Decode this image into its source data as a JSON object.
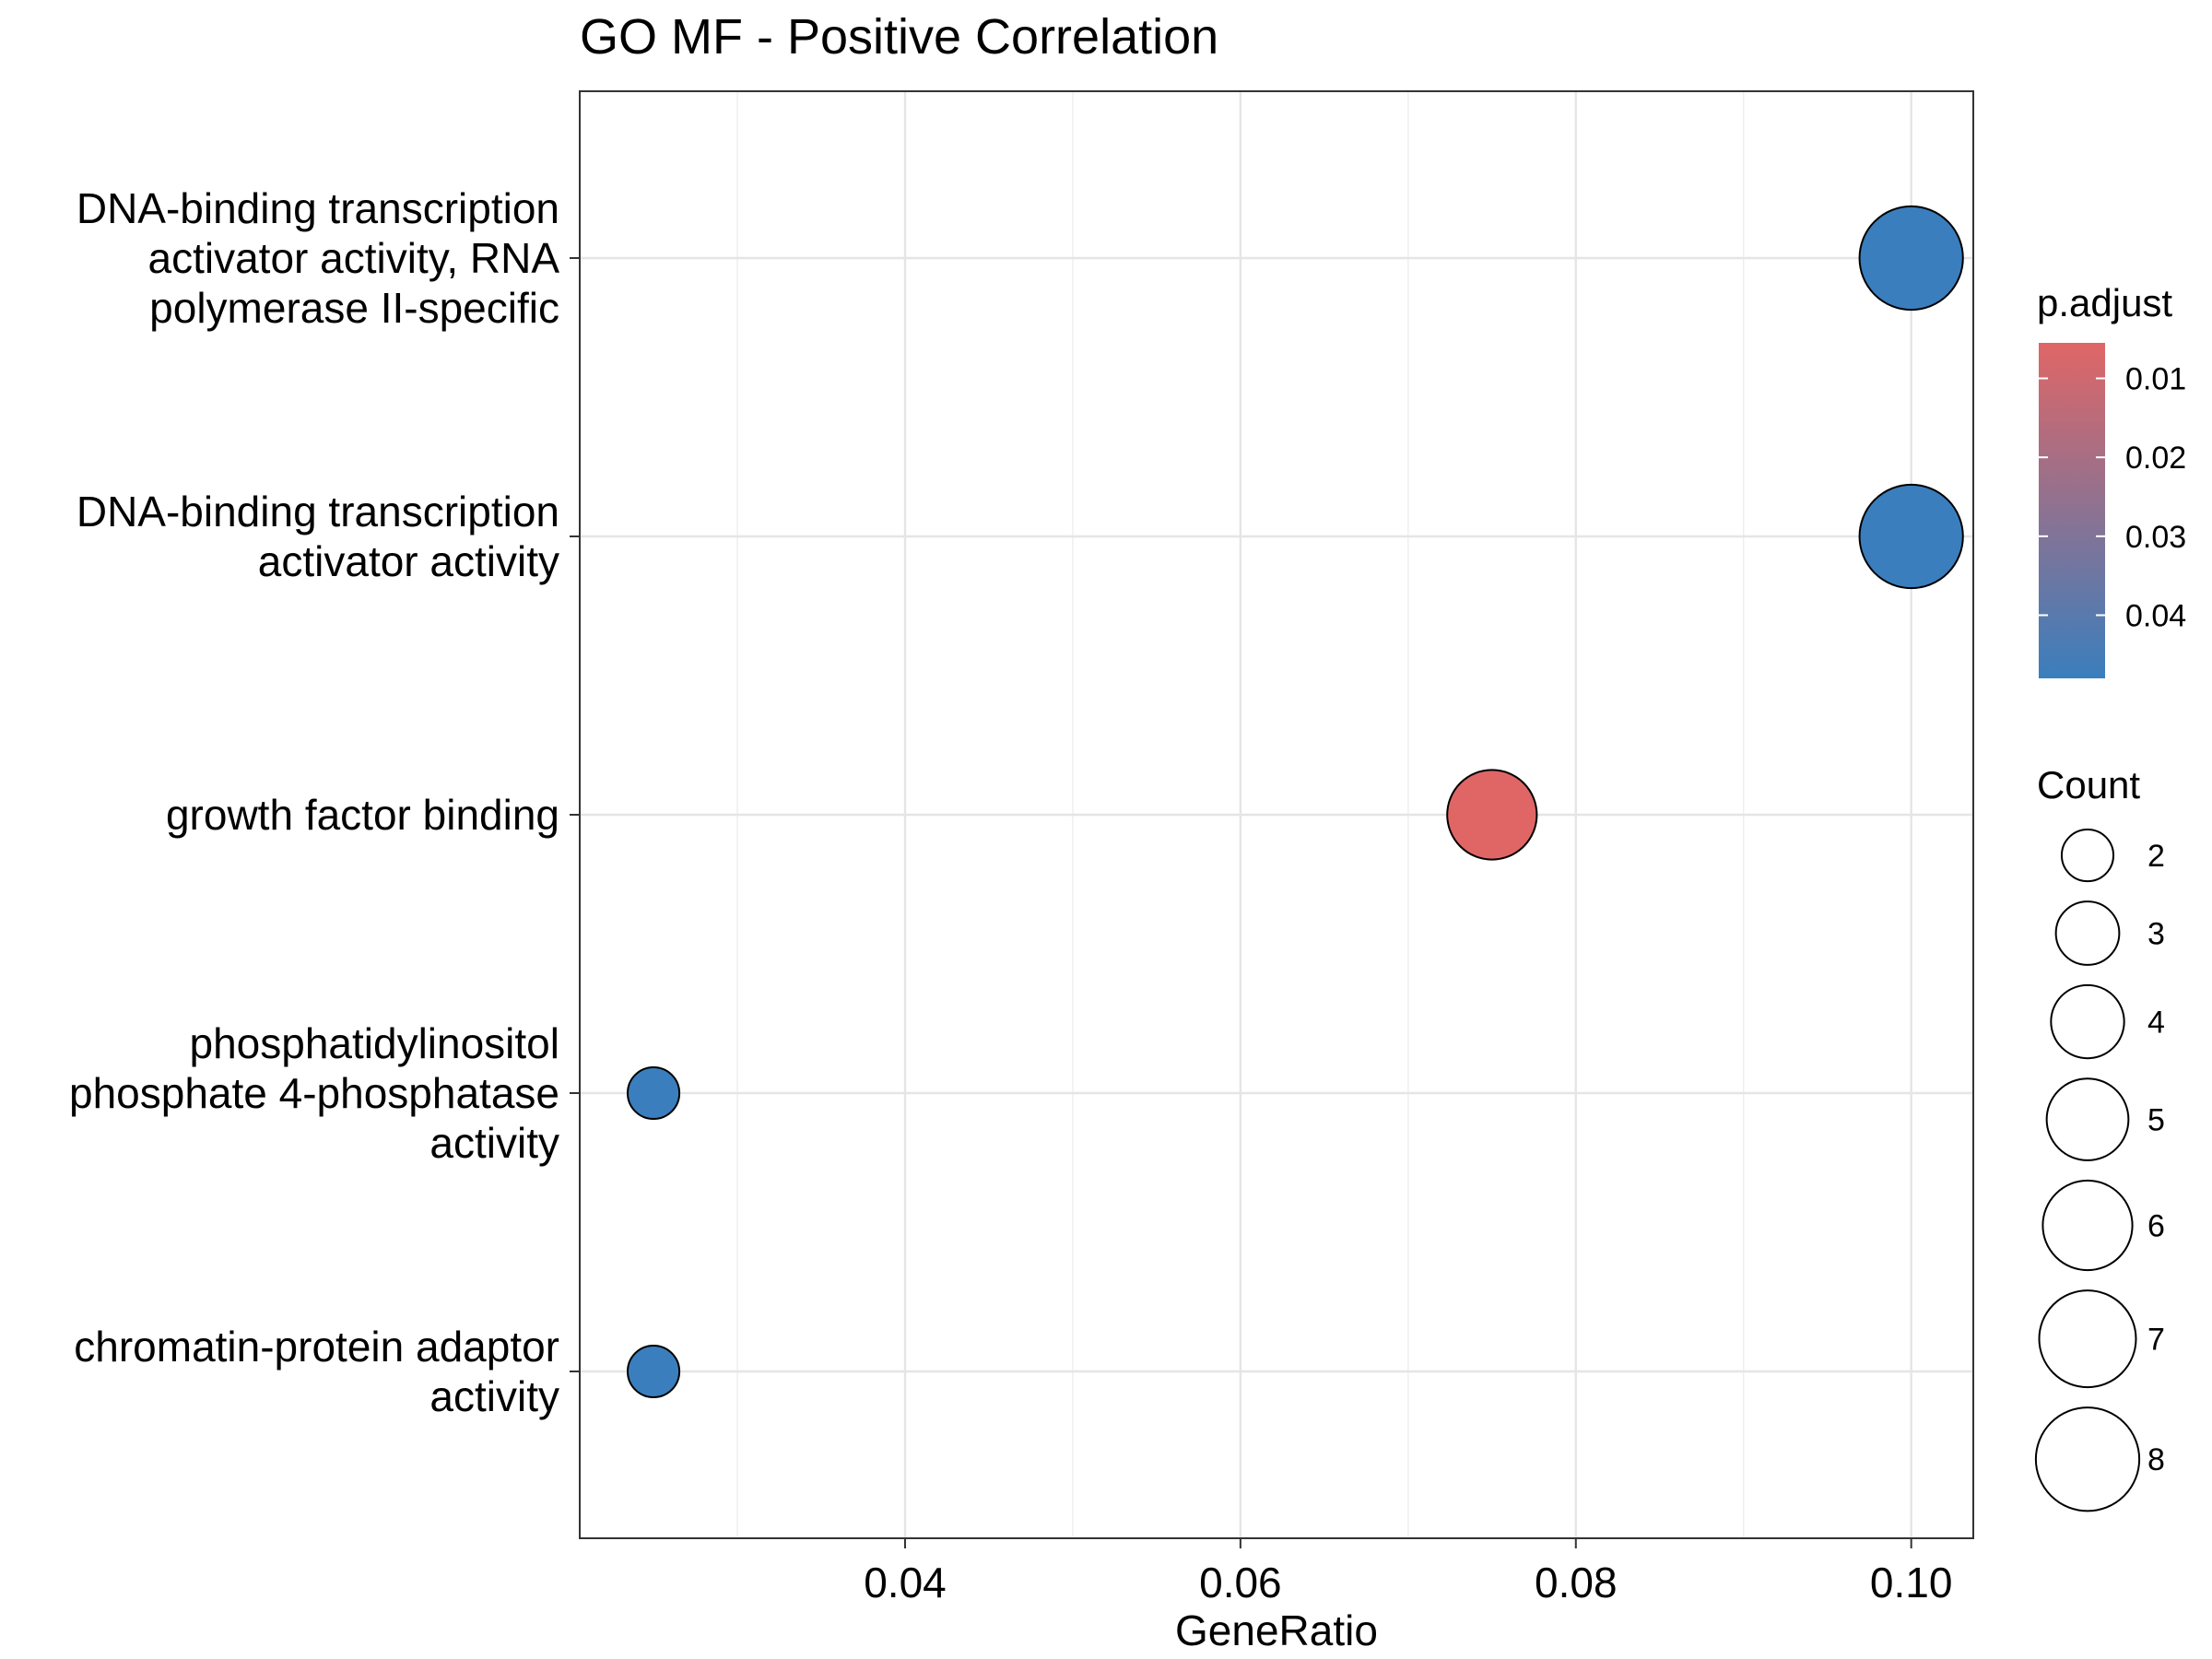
{
  "chart_data": {
    "type": "scatter",
    "title": "GO MF - Positive Correlation",
    "xlabel": "GeneRatio",
    "ylabel": "",
    "xlim": [
      0.0206,
      0.1037
    ],
    "x_ticks": [
      0.04,
      0.06,
      0.08,
      0.1
    ],
    "x_tick_labels": [
      "0.04",
      "0.06",
      "0.08",
      "0.10"
    ],
    "grid": true,
    "categories": [
      {
        "label_lines": [
          "DNA-binding transcription",
          "activator activity, RNA",
          "polymerase II-specific"
        ]
      },
      {
        "label_lines": [
          "DNA-binding transcription",
          "activator activity"
        ]
      },
      {
        "label_lines": [
          "growth factor binding"
        ]
      },
      {
        "label_lines": [
          "phosphatidylinositol",
          "phosphate 4-phosphatase",
          "activity"
        ]
      },
      {
        "label_lines": [
          "chromatin-protein adaptor",
          "activity"
        ]
      }
    ],
    "points": [
      {
        "category": 0,
        "x": 0.1,
        "count": 8,
        "p_adjust": 0.048
      },
      {
        "category": 1,
        "x": 0.1,
        "count": 8,
        "p_adjust": 0.048
      },
      {
        "category": 2,
        "x": 0.075,
        "count": 6,
        "p_adjust": 0.0055
      },
      {
        "category": 3,
        "x": 0.025,
        "count": 2,
        "p_adjust": 0.048
      },
      {
        "category": 4,
        "x": 0.025,
        "count": 2,
        "p_adjust": 0.048
      }
    ],
    "color_legend": {
      "title": "p.adjust",
      "breaks": [
        0.01,
        0.02,
        0.03,
        0.04
      ],
      "break_labels": [
        "0.01",
        "0.02",
        "0.03",
        "0.04"
      ],
      "range": [
        0.0055,
        0.048
      ],
      "low_color": "#E06666",
      "high_color": "#3A7EBD"
    },
    "size_legend": {
      "title": "Count",
      "values": [
        2,
        3,
        4,
        5,
        6,
        7,
        8
      ],
      "labels": [
        "2",
        "3",
        "4",
        "5",
        "6",
        "7",
        "8"
      ]
    },
    "legend_position": "right"
  }
}
